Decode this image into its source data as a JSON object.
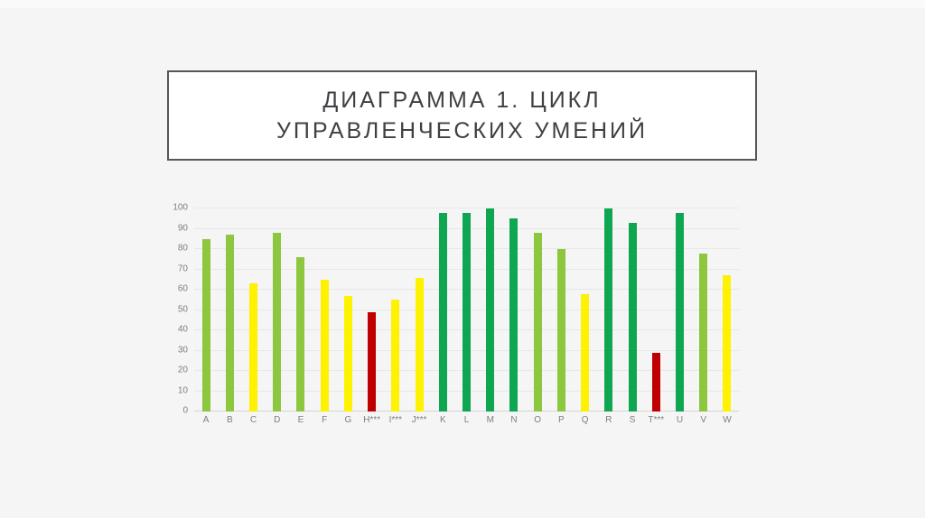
{
  "title": {
    "line1": "ДИАГРАММА 1. ЦИКЛ",
    "line2": "УПРАВЛЕНЧЕСКИХ УМЕНИЙ"
  },
  "colors": {
    "background": "#f5f5f5",
    "title_border": "#54565a",
    "title_text": "#3e4043",
    "axis_text": "#7f7f7f",
    "gridline": "#e7e7e7"
  },
  "chart_data": {
    "type": "bar",
    "title": "ДИАГРАММА 1. ЦИКЛ УПРАВЛЕНЧЕСКИХ УМЕНИЙ",
    "xlabel": "",
    "ylabel": "",
    "ylim": [
      0,
      100
    ],
    "yticks": [
      0,
      10,
      20,
      30,
      40,
      50,
      60,
      70,
      80,
      90,
      100
    ],
    "grid": true,
    "legend": false,
    "categories": [
      "A",
      "B",
      "C",
      "D",
      "E",
      "F",
      "G",
      "H***",
      "I***",
      "J***",
      "K",
      "L",
      "M",
      "N",
      "O",
      "P",
      "Q",
      "R",
      "S",
      "T***",
      "U",
      "V",
      "W"
    ],
    "values": [
      85,
      87,
      63,
      88,
      76,
      65,
      57,
      49,
      55,
      66,
      98,
      98,
      100,
      95,
      88,
      80,
      58,
      100,
      93,
      29,
      98,
      78,
      67
    ],
    "bar_colors": [
      "lightgreen",
      "lightgreen",
      "yellow",
      "lightgreen",
      "lightgreen",
      "yellow",
      "yellow",
      "red",
      "yellow",
      "yellow",
      "green",
      "green",
      "green",
      "green",
      "lightgreen",
      "lightgreen",
      "yellow",
      "green",
      "green",
      "red",
      "green",
      "lightgreen",
      "yellow"
    ],
    "palette": {
      "lightgreen": "#8dc63f",
      "yellow": "#fff200",
      "green": "#0ea651",
      "red": "#c00000"
    }
  }
}
